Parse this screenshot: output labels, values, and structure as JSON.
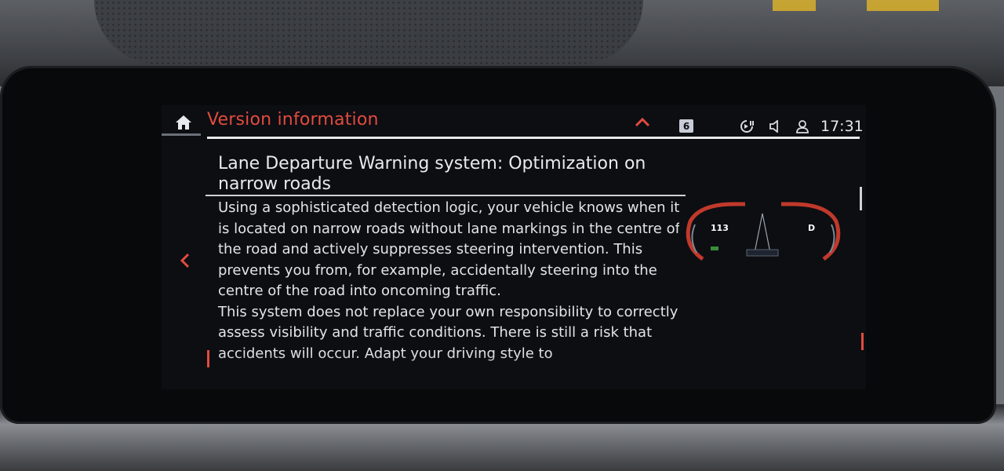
{
  "header": {
    "title": "Version information",
    "badge": "6",
    "clock": "17:31",
    "icons": [
      "home-icon",
      "chevron-up-icon",
      "signal-icon",
      "media-icon",
      "speaker-icon",
      "user-icon"
    ]
  },
  "article": {
    "title": "Lane Departure Warning system: Optimization on narrow roads",
    "paragraphs": [
      "Using a sophisticated detection logic, your vehicle knows when it is located on narrow roads without lane markings in the centre of the road and actively suppresses steering intervention. This prevents you from, for example, accidentally steering into the centre of the road into oncoming traffic.",
      "This system does not replace your own responsibility to correctly assess visibility and traffic conditions. There is still a risk that accidents will occur. Adapt your driving style to"
    ]
  },
  "cluster_preview": {
    "speed": "113",
    "gear": "D"
  },
  "colors": {
    "accent": "#e24b3f",
    "screen_bg": "#0c0e12",
    "text": "#e3e4e6"
  }
}
